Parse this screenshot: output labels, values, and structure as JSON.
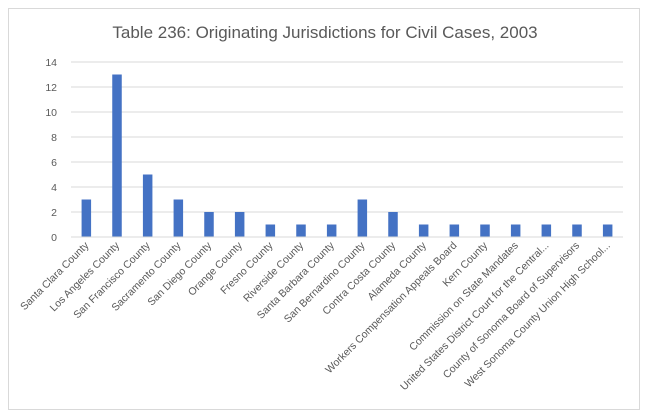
{
  "chart_data": {
    "type": "bar",
    "title": "Table 236: Originating Jurisdictions for Civil Cases, 2003",
    "xlabel": "",
    "ylabel": "",
    "ylim": [
      0,
      14
    ],
    "yticks": [
      0,
      2,
      4,
      6,
      8,
      10,
      12,
      14
    ],
    "grid": true,
    "legend": "none",
    "bar_color": "#4472c4",
    "categories": [
      "Santa Clara County",
      "Los Angeles County",
      "San Francisco County",
      "Sacramento County",
      "San Diego County",
      "Orange County",
      "Fresno County",
      "Riverside County",
      "Santa Barbara County",
      "San Bernardino County",
      "Contra Costa County",
      "Alameda County",
      "Workers Compensation Appeals Board",
      "Kern County",
      "Commission on State Mandates",
      "United States District Court for the Central...",
      "County of Sonoma Board of Supervisors",
      "West Sonoma County Union High School..."
    ],
    "values": [
      3,
      13,
      5,
      3,
      2,
      2,
      1,
      1,
      1,
      3,
      2,
      1,
      1,
      1,
      1,
      1,
      1,
      1
    ]
  }
}
